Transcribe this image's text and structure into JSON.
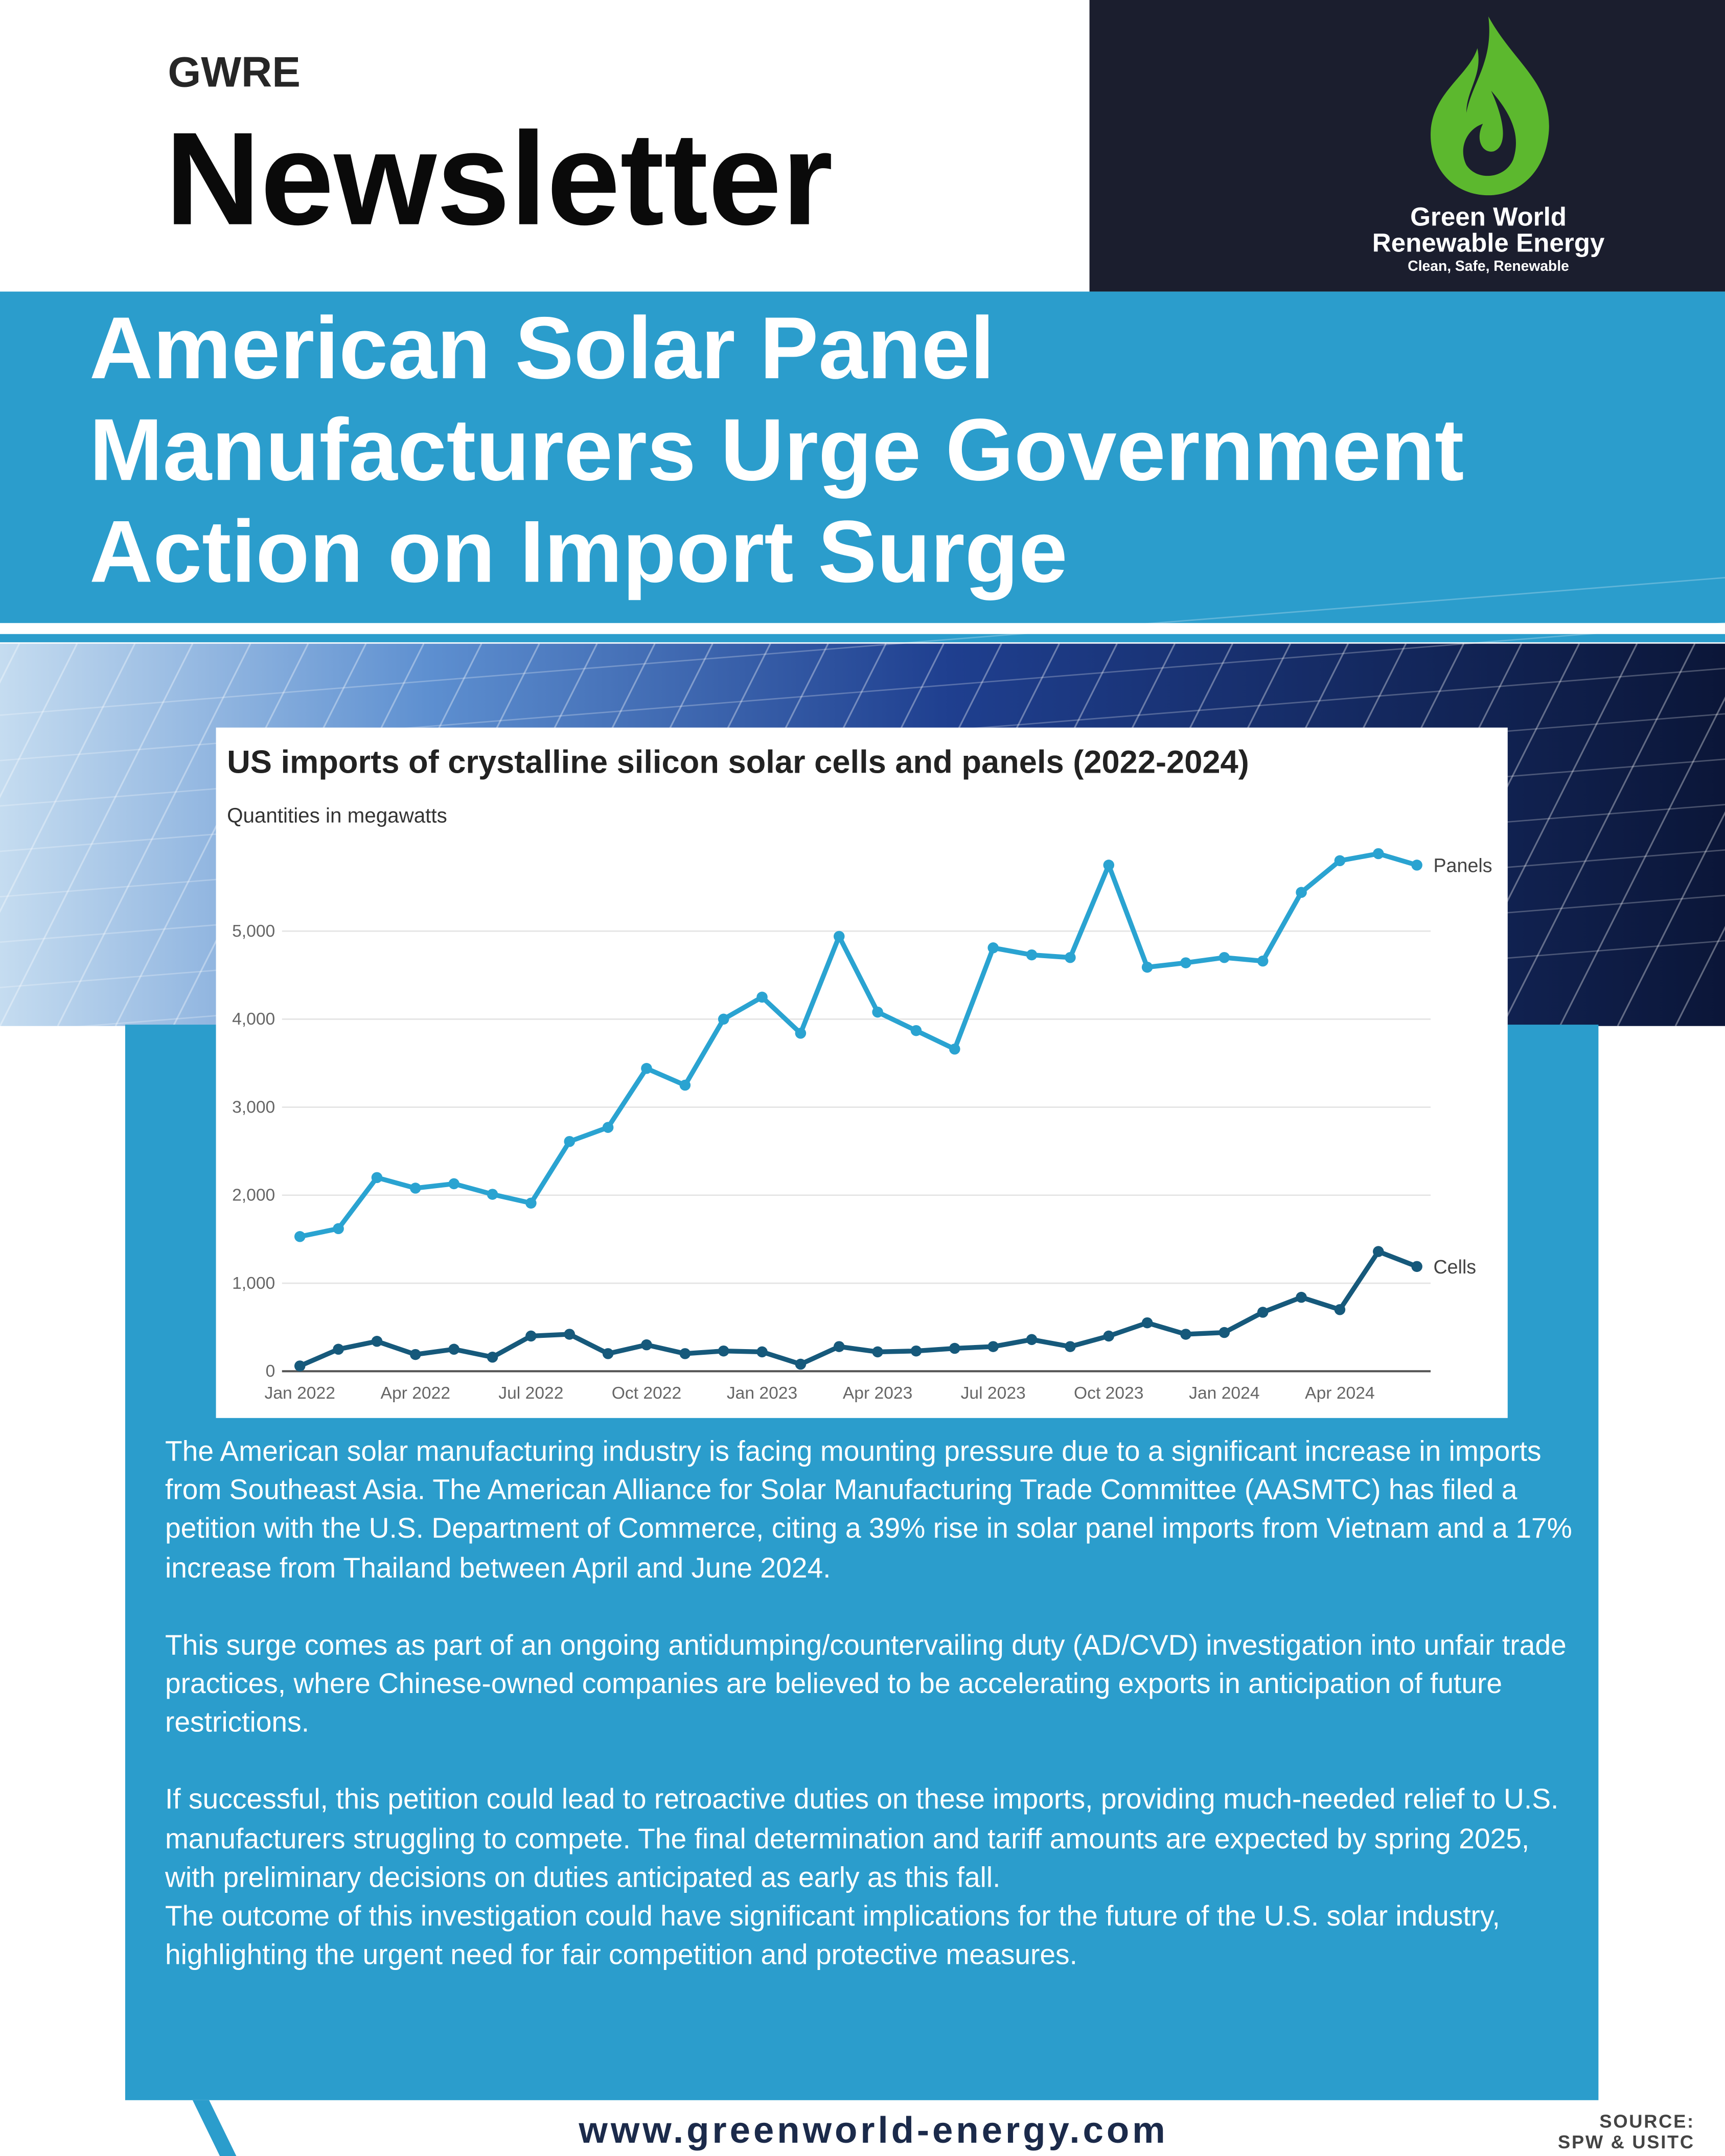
{
  "header": {
    "brand": "GWRE",
    "title": "Newsletter"
  },
  "logo": {
    "name_line1": "Green World",
    "name_line2": "Renewable Energy",
    "tagline": "Clean, Safe, Renewable"
  },
  "headline_lines": [
    "American Solar Panel",
    "Manufacturers Urge Government",
    "Action on Import Surge"
  ],
  "chart_data": {
    "type": "line",
    "title": "US imports of crystalline silicon solar cells and panels (2022-2024)",
    "subtitle": "Quantities in megawatts",
    "categories": [
      "Jan 2022",
      null,
      null,
      "Apr 2022",
      null,
      null,
      "Jul 2022",
      null,
      null,
      "Oct 2022",
      null,
      null,
      "Jan 2023",
      null,
      null,
      "Apr 2023",
      null,
      null,
      "Jul 2023",
      null,
      null,
      "Oct 2023",
      null,
      null,
      "Jan 2024",
      null,
      null,
      "Apr 2024",
      null,
      null
    ],
    "series": [
      {
        "name": "Panels",
        "color": "#2aa3d1",
        "values": [
          1530,
          1620,
          2200,
          2080,
          2130,
          2010,
          1910,
          2610,
          2770,
          3440,
          3250,
          4000,
          4250,
          3840,
          4940,
          4080,
          3870,
          3660,
          4810,
          4730,
          4700,
          5750,
          4590,
          4640,
          4700,
          4660,
          5440,
          5800,
          5880,
          5750
        ]
      },
      {
        "name": "Cells",
        "color": "#16597b",
        "values": [
          60,
          250,
          340,
          190,
          250,
          160,
          400,
          420,
          200,
          300,
          200,
          230,
          220,
          80,
          280,
          220,
          230,
          260,
          280,
          360,
          280,
          400,
          550,
          420,
          440,
          670,
          840,
          700,
          1360,
          1190
        ]
      }
    ],
    "ylim": [
      0,
      6000
    ],
    "yticks": [
      0,
      {
        "value": 1000,
        "label": "1,000"
      },
      {
        "value": 2000,
        "label": "2,000"
      },
      {
        "value": 3000,
        "label": "3,000"
      },
      {
        "value": 4000,
        "label": "4,000"
      },
      {
        "value": 5000,
        "label": "5,000"
      }
    ],
    "grid": true
  },
  "body": [
    "The American solar manufacturing industry is facing mounting pressure due to a significant increase in imports from Southeast Asia. The American Alliance for Solar Manufacturing Trade Committee (AASMTC) has filed a petition with the U.S. Department of Commerce, citing a 39% rise in solar panel imports from Vietnam and a 17% increase from Thailand between April and June 2024.",
    "This surge comes as part of an ongoing antidumping/countervailing duty (AD/CVD) investigation into unfair trade practices, where Chinese-owned companies are believed to be accelerating exports in anticipation of future restrictions.",
    "If successful, this petition could lead to retroactive duties on these imports, providing much-needed relief to U.S. manufacturers struggling to compete. The final determination and tariff amounts are expected by spring 2025, with preliminary decisions on duties anticipated as early as this fall.",
    "The outcome of this investigation could have significant implications for the future of the U.S. solar industry, highlighting the urgent need for fair competition and protective measures."
  ],
  "footer": {
    "url": "www.greenworld-energy.com",
    "source": [
      "SOURCE:",
      "SPW & USITC"
    ]
  }
}
